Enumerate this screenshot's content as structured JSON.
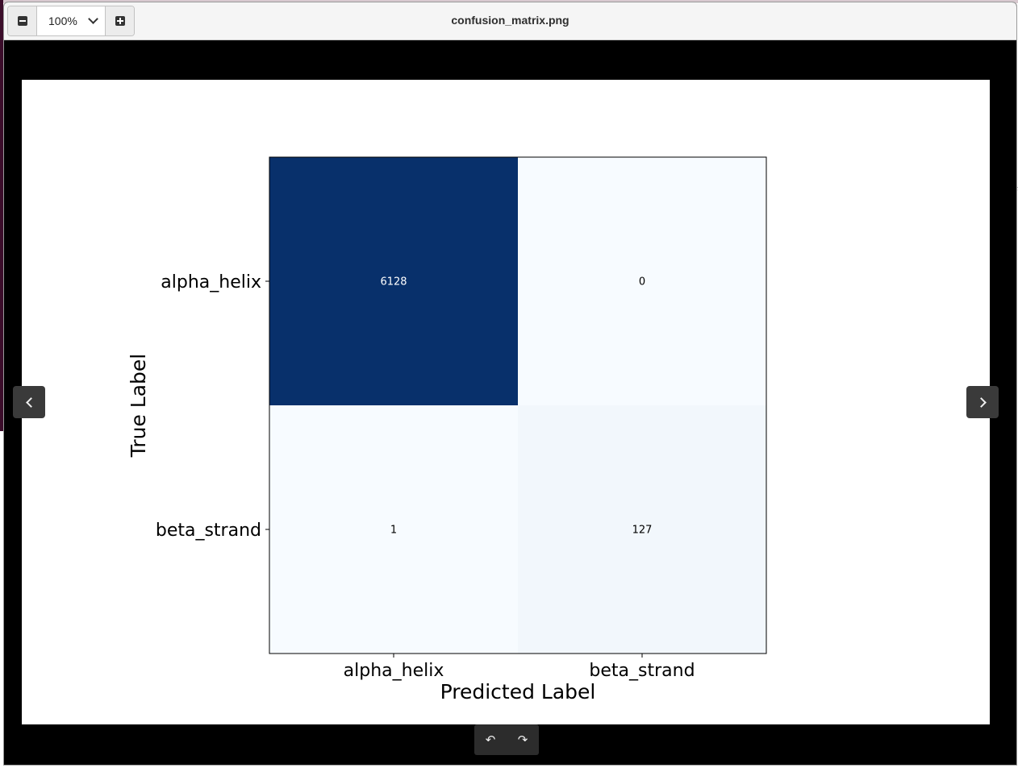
{
  "window": {
    "title": "confusion_matrix.png"
  },
  "toolbar": {
    "zoom_out_icon": "minus-icon",
    "zoom_value": "100%",
    "zoom_in_icon": "plus-icon"
  },
  "navigation": {
    "prev_icon": "chevron-left-icon",
    "next_icon": "chevron-right-icon",
    "rotate_left_glyph": "↶",
    "rotate_right_glyph": "↷"
  },
  "colors": {
    "cell_high": "#08306b",
    "cell_low": "#f7fbff",
    "cell_lowish": "#f4f8fd"
  },
  "chart_data": {
    "type": "heatmap",
    "x_labels": [
      "alpha_helix",
      "beta_strand"
    ],
    "y_labels": [
      "alpha_helix",
      "beta_strand"
    ],
    "values": [
      [
        6128,
        0
      ],
      [
        1,
        127
      ]
    ],
    "xlabel": "Predicted Label",
    "ylabel": "True Label",
    "colormap": "Blues"
  }
}
